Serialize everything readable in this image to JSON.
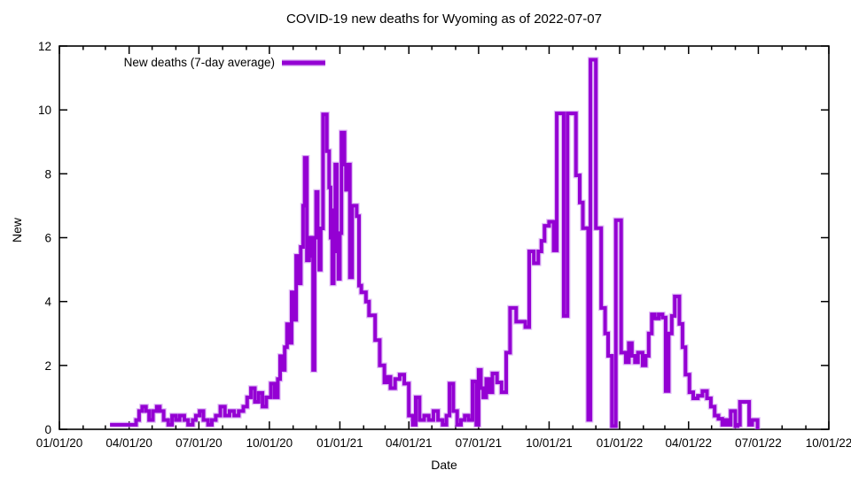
{
  "chart_data": {
    "type": "line",
    "line_style": "steps",
    "title": "COVID-19 new deaths for Wyoming as of 2022-07-07",
    "xlabel": "Date",
    "ylabel": "New",
    "legend_position": "top-left-inside",
    "legend": [
      {
        "label": "New deaths (7-day average)",
        "color": "#9400D3"
      }
    ],
    "grid": false,
    "ylim": [
      0,
      12
    ],
    "y_ticks": [
      0,
      2,
      4,
      6,
      8,
      10,
      12
    ],
    "xlim_days": [
      0,
      1004
    ],
    "x_ticks": [
      {
        "day": 0,
        "label": "01/01/20"
      },
      {
        "day": 91,
        "label": "04/01/20"
      },
      {
        "day": 182,
        "label": "07/01/20"
      },
      {
        "day": 274,
        "label": "10/01/20"
      },
      {
        "day": 366,
        "label": "01/01/21"
      },
      {
        "day": 456,
        "label": "04/01/21"
      },
      {
        "day": 547,
        "label": "07/01/21"
      },
      {
        "day": 639,
        "label": "10/01/21"
      },
      {
        "day": 731,
        "label": "01/01/22"
      },
      {
        "day": 821,
        "label": "04/01/22"
      },
      {
        "day": 912,
        "label": "07/01/22"
      },
      {
        "day": 1004,
        "label": "10/01/22"
      }
    ],
    "x_minor_tick_days": [
      31,
      60,
      121,
      152,
      213,
      244,
      305,
      335,
      397,
      425,
      486,
      517,
      578,
      609,
      670,
      700,
      762,
      790,
      851,
      882,
      943,
      974
    ],
    "series": [
      {
        "name": "New deaths (7-day average)",
        "color": "#9400D3",
        "halo_color": "#c98bef",
        "points_day_value": [
          [
            66,
            0.14
          ],
          [
            94,
            0.14
          ],
          [
            100,
            0.29
          ],
          [
            104,
            0.57
          ],
          [
            108,
            0.71
          ],
          [
            113,
            0.57
          ],
          [
            117,
            0.29
          ],
          [
            122,
            0.57
          ],
          [
            127,
            0.71
          ],
          [
            131,
            0.57
          ],
          [
            136,
            0.29
          ],
          [
            142,
            0.14
          ],
          [
            147,
            0.43
          ],
          [
            152,
            0.29
          ],
          [
            157,
            0.43
          ],
          [
            163,
            0.29
          ],
          [
            168,
            0.14
          ],
          [
            174,
            0.29
          ],
          [
            178,
            0.43
          ],
          [
            183,
            0.57
          ],
          [
            188,
            0.29
          ],
          [
            194,
            0.14
          ],
          [
            199,
            0.29
          ],
          [
            204,
            0.43
          ],
          [
            210,
            0.71
          ],
          [
            216,
            0.43
          ],
          [
            222,
            0.57
          ],
          [
            228,
            0.43
          ],
          [
            234,
            0.57
          ],
          [
            240,
            0.71
          ],
          [
            245,
            1.0
          ],
          [
            250,
            1.29
          ],
          [
            255,
            0.86
          ],
          [
            260,
            1.14
          ],
          [
            265,
            0.71
          ],
          [
            270,
            1.0
          ],
          [
            276,
            1.43
          ],
          [
            281,
            1.0
          ],
          [
            285,
            1.57
          ],
          [
            288,
            2.29
          ],
          [
            291,
            1.86
          ],
          [
            294,
            2.57
          ],
          [
            297,
            3.29
          ],
          [
            300,
            2.71
          ],
          [
            303,
            4.29
          ],
          [
            306,
            3.43
          ],
          [
            309,
            5.43
          ],
          [
            312,
            4.57
          ],
          [
            315,
            5.71
          ],
          [
            318,
            7.0
          ],
          [
            320,
            8.5
          ],
          [
            323,
            5.29
          ],
          [
            326,
            6.0
          ],
          [
            329,
            5.43
          ],
          [
            331,
            1.86
          ],
          [
            333,
            6.0
          ],
          [
            335,
            7.43
          ],
          [
            337,
            6.14
          ],
          [
            339,
            5.0
          ],
          [
            341,
            6.29
          ],
          [
            344,
            9.86
          ],
          [
            349,
            8.71
          ],
          [
            352,
            7.57
          ],
          [
            354,
            6.0
          ],
          [
            356,
            4.57
          ],
          [
            358,
            6.86
          ],
          [
            360,
            8.29
          ],
          [
            362,
            5.57
          ],
          [
            364,
            4.71
          ],
          [
            366,
            6.14
          ],
          [
            368,
            9.29
          ],
          [
            372,
            8.29
          ],
          [
            374,
            7.5
          ],
          [
            376,
            8.29
          ],
          [
            379,
            4.76
          ],
          [
            382,
            7.0
          ],
          [
            388,
            6.67
          ],
          [
            391,
            4.5
          ],
          [
            394,
            4.29
          ],
          [
            400,
            4.0
          ],
          [
            404,
            3.57
          ],
          [
            412,
            2.79
          ],
          [
            418,
            2.0
          ],
          [
            424,
            1.47
          ],
          [
            428,
            1.64
          ],
          [
            432,
            1.29
          ],
          [
            438,
            1.57
          ],
          [
            444,
            1.71
          ],
          [
            450,
            1.43
          ],
          [
            456,
            0.43
          ],
          [
            461,
            0.14
          ],
          [
            465,
            1.0
          ],
          [
            470,
            0.29
          ],
          [
            476,
            0.43
          ],
          [
            482,
            0.29
          ],
          [
            488,
            0.57
          ],
          [
            494,
            0.29
          ],
          [
            500,
            0.14
          ],
          [
            505,
            0.43
          ],
          [
            509,
            1.43
          ],
          [
            514,
            0.57
          ],
          [
            519,
            0.14
          ],
          [
            524,
            0.29
          ],
          [
            529,
            0.43
          ],
          [
            534,
            0.29
          ],
          [
            539,
            1.5
          ],
          [
            544,
            0.14
          ],
          [
            547,
            1.86
          ],
          [
            550,
            1.29
          ],
          [
            553,
            1.0
          ],
          [
            557,
            1.57
          ],
          [
            561,
            1.16
          ],
          [
            565,
            1.75
          ],
          [
            571,
            1.47
          ],
          [
            577,
            1.16
          ],
          [
            583,
            2.4
          ],
          [
            588,
            3.8
          ],
          [
            596,
            3.37
          ],
          [
            604,
            3.37
          ],
          [
            608,
            3.2
          ],
          [
            613,
            5.57
          ],
          [
            619,
            5.2
          ],
          [
            625,
            5.57
          ],
          [
            629,
            5.9
          ],
          [
            633,
            6.37
          ],
          [
            639,
            6.5
          ],
          [
            645,
            5.6
          ],
          [
            649,
            9.89
          ],
          [
            658,
            3.55
          ],
          [
            663,
            9.89
          ],
          [
            674,
            7.95
          ],
          [
            679,
            7.1
          ],
          [
            683,
            6.3
          ],
          [
            690,
            0.3
          ],
          [
            693,
            11.57
          ],
          [
            700,
            6.3
          ],
          [
            707,
            3.8
          ],
          [
            712,
            3.0
          ],
          [
            716,
            2.3
          ],
          [
            721,
            0.1
          ],
          [
            726,
            6.55
          ],
          [
            733,
            2.4
          ],
          [
            739,
            2.1
          ],
          [
            743,
            2.7
          ],
          [
            747,
            2.3
          ],
          [
            751,
            2.1
          ],
          [
            755,
            2.4
          ],
          [
            761,
            2.0
          ],
          [
            765,
            2.3
          ],
          [
            769,
            3.0
          ],
          [
            773,
            3.6
          ],
          [
            777,
            3.47
          ],
          [
            782,
            3.6
          ],
          [
            787,
            3.5
          ],
          [
            791,
            1.2
          ],
          [
            795,
            3.0
          ],
          [
            799,
            3.55
          ],
          [
            803,
            4.16
          ],
          [
            809,
            3.3
          ],
          [
            813,
            2.57
          ],
          [
            817,
            1.71
          ],
          [
            822,
            1.16
          ],
          [
            827,
            0.97
          ],
          [
            833,
            1.05
          ],
          [
            839,
            1.2
          ],
          [
            845,
            0.97
          ],
          [
            850,
            0.71
          ],
          [
            855,
            0.43
          ],
          [
            860,
            0.33
          ],
          [
            865,
            0.14
          ],
          [
            869,
            0.29
          ],
          [
            873,
            0.14
          ],
          [
            876,
            0.57
          ],
          [
            880,
            0.57
          ],
          [
            882,
            0.1
          ],
          [
            885,
            0.14
          ],
          [
            888,
            0.86
          ],
          [
            895,
            0.86
          ],
          [
            900,
            0.14
          ],
          [
            904,
            0.29
          ],
          [
            908,
            0.29
          ],
          [
            911,
            0.0
          ]
        ]
      }
    ]
  },
  "colors": {
    "background": "#ffffff",
    "axis": "#000000",
    "line": "#9400D3"
  }
}
